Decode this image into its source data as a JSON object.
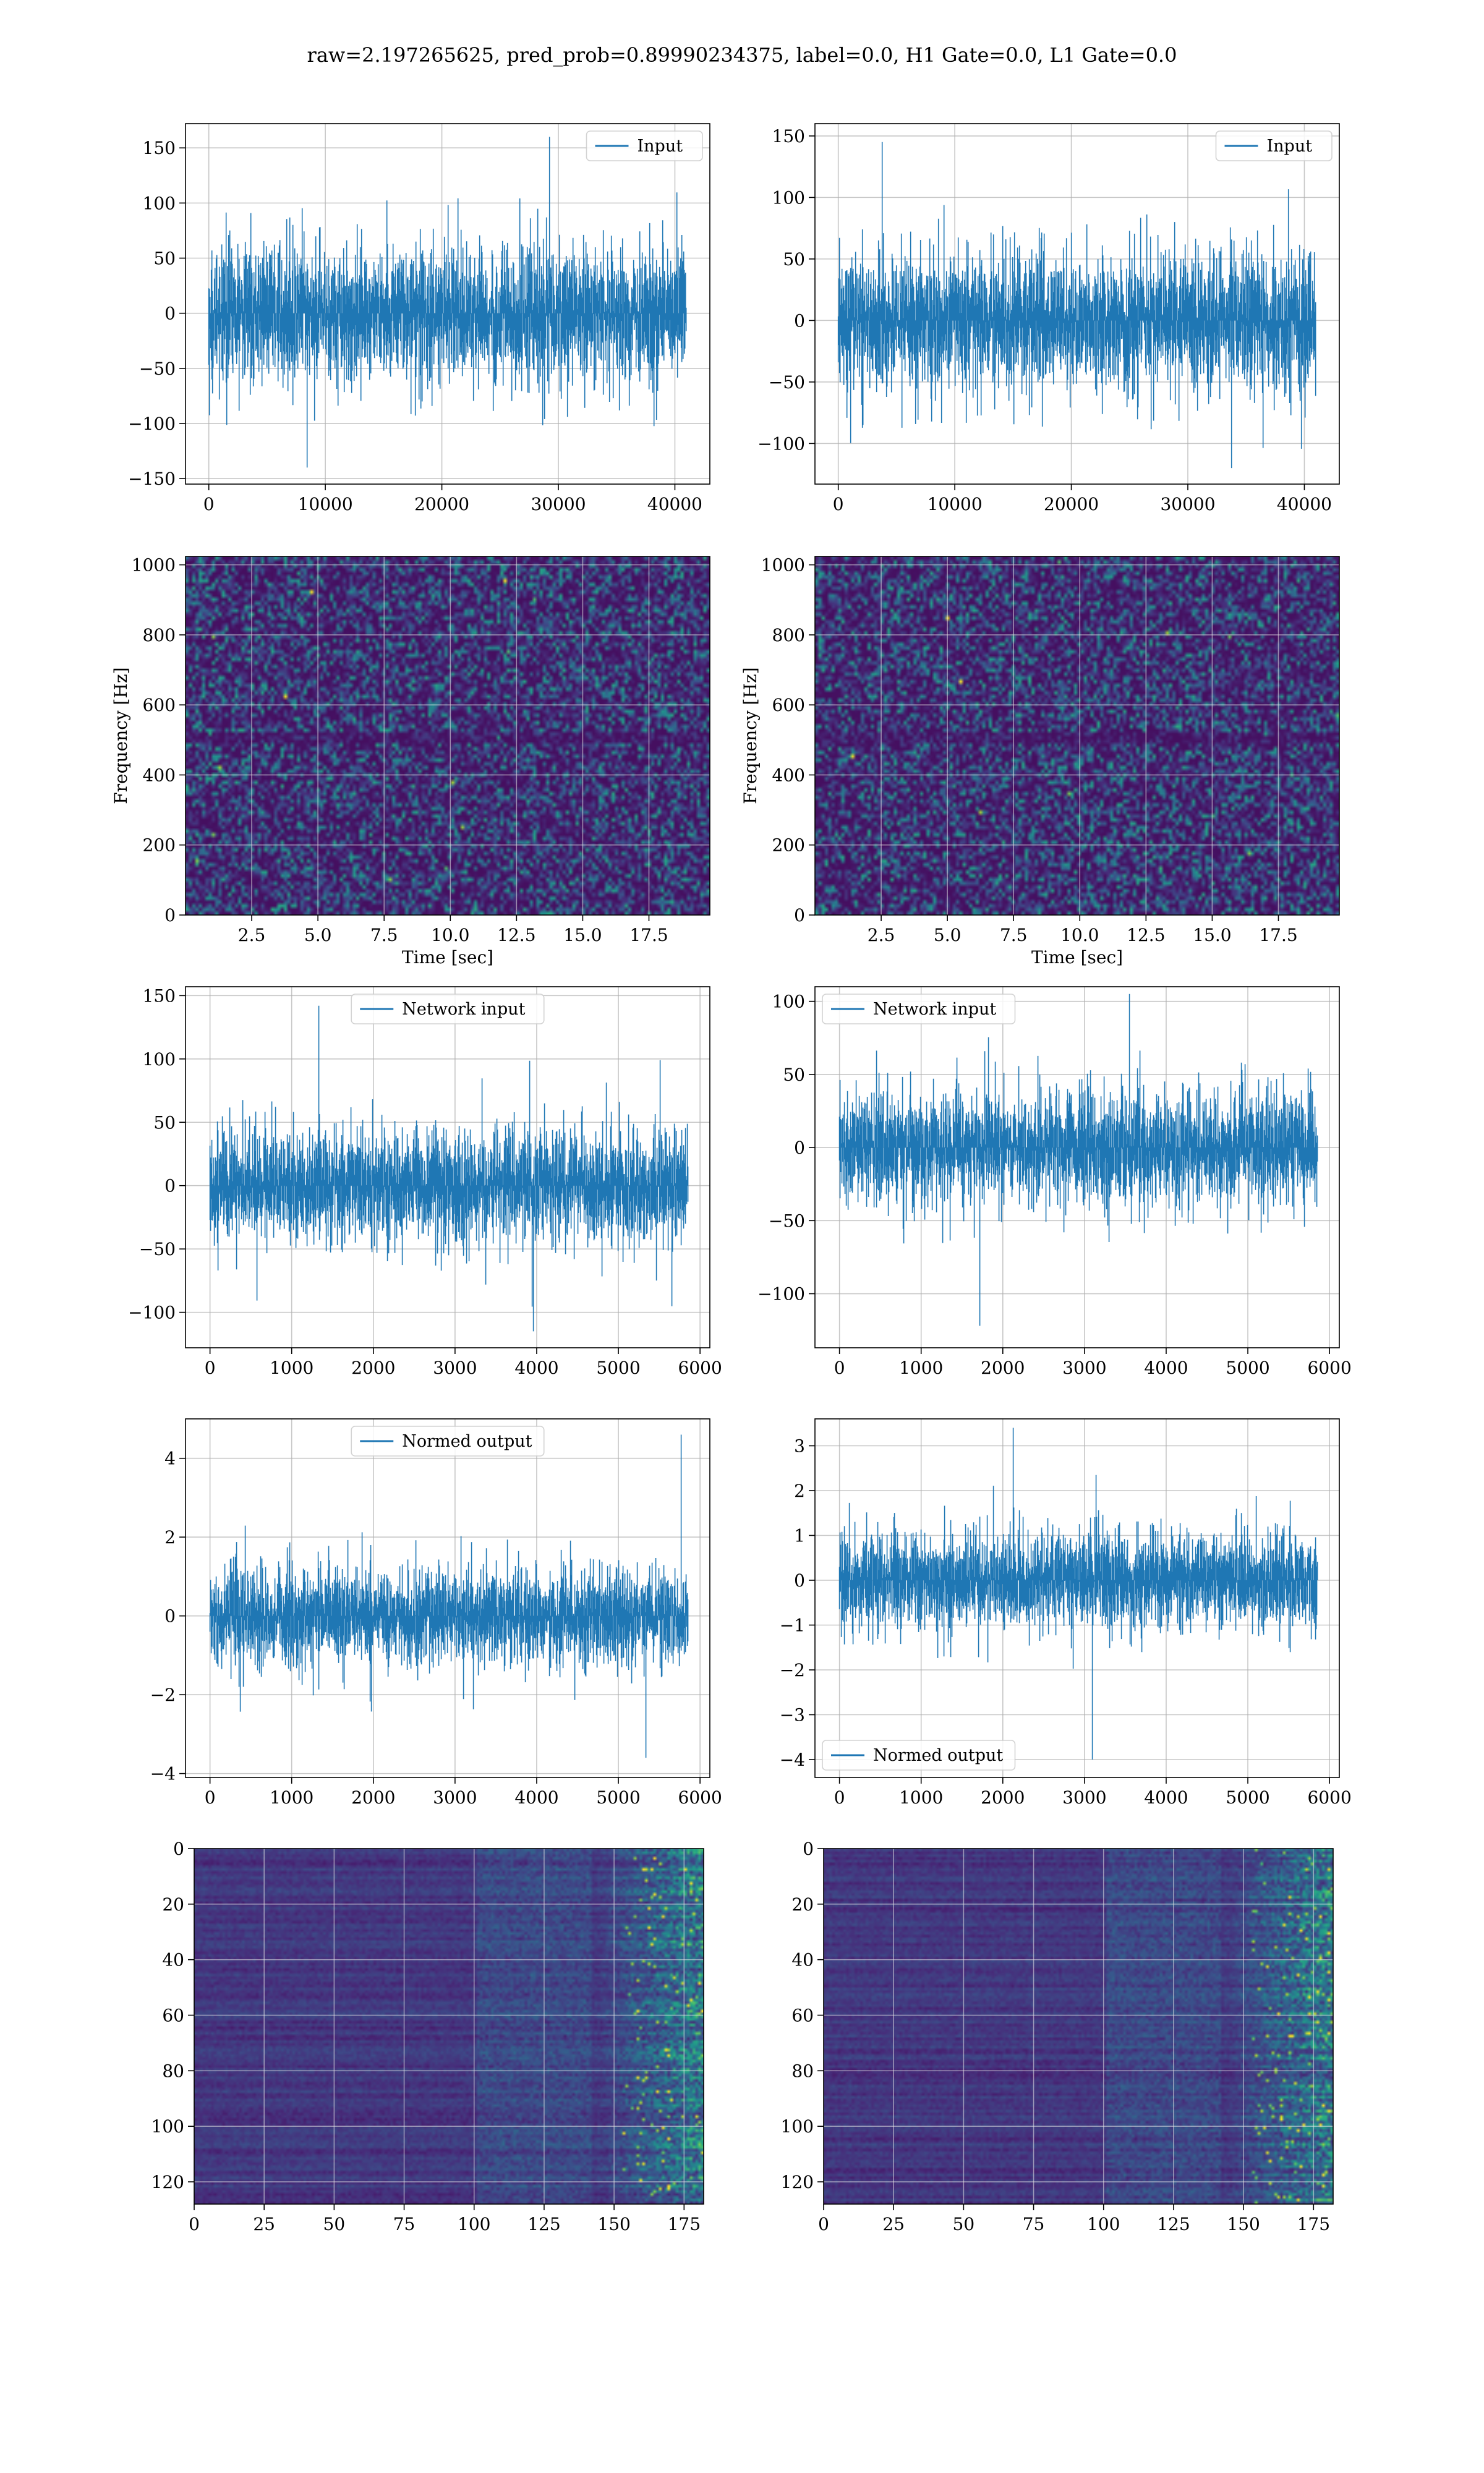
{
  "suptitle": "raw=2.197265625, pred_prob=0.89990234375, label=0.0, H1 Gate=0.0, L1 Gate=0.0",
  "colors": {
    "line": "#1f77b4",
    "grid": "#b0b0b0",
    "viridis_low": "#440154",
    "viridis_high": "#fde725"
  },
  "chart_data": [
    {
      "type": "line",
      "row": 1,
      "col": 1,
      "legend": "Input",
      "legend_position": "upper right",
      "xlim": [
        -2000,
        43000
      ],
      "ylim": [
        -155,
        172
      ],
      "xticks": [
        0,
        10000,
        20000,
        30000,
        40000
      ],
      "yticks": [
        -150,
        -100,
        -50,
        0,
        50,
        100,
        150
      ],
      "xtick_labels": [
        "0",
        "10000",
        "20000",
        "30000",
        "40000"
      ],
      "ytick_labels": [
        "−150",
        "−100",
        "−50",
        "0",
        "50",
        "100",
        "150"
      ],
      "series_summary": {
        "x_range": [
          0,
          40960
        ],
        "band": [
          -55,
          55
        ],
        "max": 160,
        "min": -140
      },
      "xlabel": "",
      "ylabel": "",
      "grid": true
    },
    {
      "type": "line",
      "row": 1,
      "col": 2,
      "legend": "Input",
      "legend_position": "upper right",
      "xlim": [
        -2000,
        43000
      ],
      "ylim": [
        -133,
        160
      ],
      "xticks": [
        0,
        10000,
        20000,
        30000,
        40000
      ],
      "yticks": [
        -100,
        -50,
        0,
        50,
        100,
        150
      ],
      "xtick_labels": [
        "0",
        "10000",
        "20000",
        "30000",
        "40000"
      ],
      "ytick_labels": [
        "−100",
        "−50",
        "0",
        "50",
        "100",
        "150"
      ],
      "series_summary": {
        "x_range": [
          0,
          40960
        ],
        "band": [
          -50,
          50
        ],
        "max": 145,
        "min": -120
      },
      "xlabel": "",
      "ylabel": "",
      "grid": true
    },
    {
      "type": "heatmap",
      "row": 2,
      "col": 1,
      "xlim": [
        0,
        19.8
      ],
      "ylim": [
        0,
        1024
      ],
      "xticks": [
        2.5,
        5.0,
        7.5,
        10.0,
        12.5,
        15.0,
        17.5
      ],
      "yticks": [
        0,
        200,
        400,
        600,
        800,
        1000
      ],
      "xtick_labels": [
        "2.5",
        "5.0",
        "7.5",
        "10.0",
        "12.5",
        "15.0",
        "17.5"
      ],
      "ytick_labels": [
        "0",
        "200",
        "400",
        "600",
        "800",
        "1000"
      ],
      "xlabel": "Time [sec]",
      "ylabel": "Frequency [Hz]",
      "colormap": "viridis",
      "grid": true
    },
    {
      "type": "heatmap",
      "row": 2,
      "col": 2,
      "xlim": [
        0,
        19.8
      ],
      "ylim": [
        0,
        1024
      ],
      "xticks": [
        2.5,
        5.0,
        7.5,
        10.0,
        12.5,
        15.0,
        17.5
      ],
      "yticks": [
        0,
        200,
        400,
        600,
        800,
        1000
      ],
      "xtick_labels": [
        "2.5",
        "5.0",
        "7.5",
        "10.0",
        "12.5",
        "15.0",
        "17.5"
      ],
      "ytick_labels": [
        "0",
        "200",
        "400",
        "600",
        "800",
        "1000"
      ],
      "xlabel": "Time [sec]",
      "ylabel": "Frequency [Hz]",
      "colormap": "viridis",
      "grid": true
    },
    {
      "type": "line",
      "row": 3,
      "col": 1,
      "legend": "Network input",
      "legend_position": "upper center",
      "xlim": [
        -300,
        6120
      ],
      "ylim": [
        -128,
        157
      ],
      "xticks": [
        0,
        1000,
        2000,
        3000,
        4000,
        5000,
        6000
      ],
      "yticks": [
        -100,
        -50,
        0,
        50,
        100,
        150
      ],
      "xtick_labels": [
        "0",
        "1000",
        "2000",
        "3000",
        "4000",
        "5000",
        "6000"
      ],
      "ytick_labels": [
        "−100",
        "−50",
        "0",
        "50",
        "100",
        "150"
      ],
      "series_summary": {
        "x_range": [
          0,
          5850
        ],
        "band": [
          -40,
          40
        ],
        "max": 142,
        "min": -115
      },
      "xlabel": "",
      "ylabel": "",
      "grid": true
    },
    {
      "type": "line",
      "row": 3,
      "col": 2,
      "legend": "Network input",
      "legend_position": "upper left",
      "xlim": [
        -300,
        6120
      ],
      "ylim": [
        -137,
        110
      ],
      "xticks": [
        0,
        1000,
        2000,
        3000,
        4000,
        5000,
        6000
      ],
      "yticks": [
        -100,
        -50,
        0,
        50,
        100
      ],
      "xtick_labels": [
        "0",
        "1000",
        "2000",
        "3000",
        "4000",
        "5000",
        "6000"
      ],
      "ytick_labels": [
        "−100",
        "−50",
        "0",
        "50",
        "100"
      ],
      "series_summary": {
        "x_range": [
          0,
          5850
        ],
        "band": [
          -35,
          35
        ],
        "max": 105,
        "min": -122
      },
      "xlabel": "",
      "ylabel": "",
      "grid": true
    },
    {
      "type": "line",
      "row": 4,
      "col": 1,
      "legend": "Normed output",
      "legend_position": "upper center",
      "xlim": [
        -300,
        6120
      ],
      "ylim": [
        -4.1,
        5.0
      ],
      "xticks": [
        0,
        1000,
        2000,
        3000,
        4000,
        5000,
        6000
      ],
      "yticks": [
        -4,
        -2,
        0,
        2,
        4
      ],
      "xtick_labels": [
        "0",
        "1000",
        "2000",
        "3000",
        "4000",
        "5000",
        "6000"
      ],
      "ytick_labels": [
        "−4",
        "−2",
        "0",
        "2",
        "4"
      ],
      "series_summary": {
        "x_range": [
          0,
          5850
        ],
        "band": [
          -1.1,
          1.1
        ],
        "max": 4.6,
        "min": -3.6
      },
      "xlabel": "",
      "ylabel": "",
      "grid": true
    },
    {
      "type": "line",
      "row": 4,
      "col": 2,
      "legend": "Normed output",
      "legend_position": "lower left",
      "xlim": [
        -300,
        6120
      ],
      "ylim": [
        -4.4,
        3.6
      ],
      "xticks": [
        0,
        1000,
        2000,
        3000,
        4000,
        5000,
        6000
      ],
      "yticks": [
        -4,
        -3,
        -2,
        -1,
        0,
        1,
        2,
        3
      ],
      "xtick_labels": [
        "0",
        "1000",
        "2000",
        "3000",
        "4000",
        "5000",
        "6000"
      ],
      "ytick_labels": [
        "−4",
        "−3",
        "−2",
        "−1",
        "0",
        "1",
        "2",
        "3"
      ],
      "series_summary": {
        "x_range": [
          0,
          5850
        ],
        "band": [
          -1.0,
          1.0
        ],
        "max": 3.4,
        "min": -4.0
      },
      "xlabel": "",
      "ylabel": "",
      "grid": true
    },
    {
      "type": "heatmap",
      "row": 5,
      "col": 1,
      "xlim": [
        0,
        182
      ],
      "ylim": [
        128,
        0
      ],
      "xticks": [
        0,
        25,
        50,
        75,
        100,
        125,
        150,
        175
      ],
      "yticks": [
        0,
        20,
        40,
        60,
        80,
        100,
        120
      ],
      "xtick_labels": [
        "0",
        "25",
        "50",
        "75",
        "100",
        "125",
        "150",
        "175"
      ],
      "ytick_labels": [
        "0",
        "20",
        "40",
        "60",
        "80",
        "100",
        "120"
      ],
      "xlabel": "",
      "ylabel": "",
      "colormap": "viridis",
      "grid": true
    },
    {
      "type": "heatmap",
      "row": 5,
      "col": 2,
      "xlim": [
        0,
        182
      ],
      "ylim": [
        128,
        0
      ],
      "xticks": [
        0,
        25,
        50,
        75,
        100,
        125,
        150,
        175
      ],
      "yticks": [
        0,
        20,
        40,
        60,
        80,
        100,
        120
      ],
      "xtick_labels": [
        "0",
        "25",
        "50",
        "75",
        "100",
        "125",
        "150",
        "175"
      ],
      "ytick_labels": [
        "0",
        "20",
        "40",
        "60",
        "80",
        "100",
        "120"
      ],
      "xlabel": "",
      "ylabel": "",
      "colormap": "viridis",
      "grid": true
    }
  ]
}
